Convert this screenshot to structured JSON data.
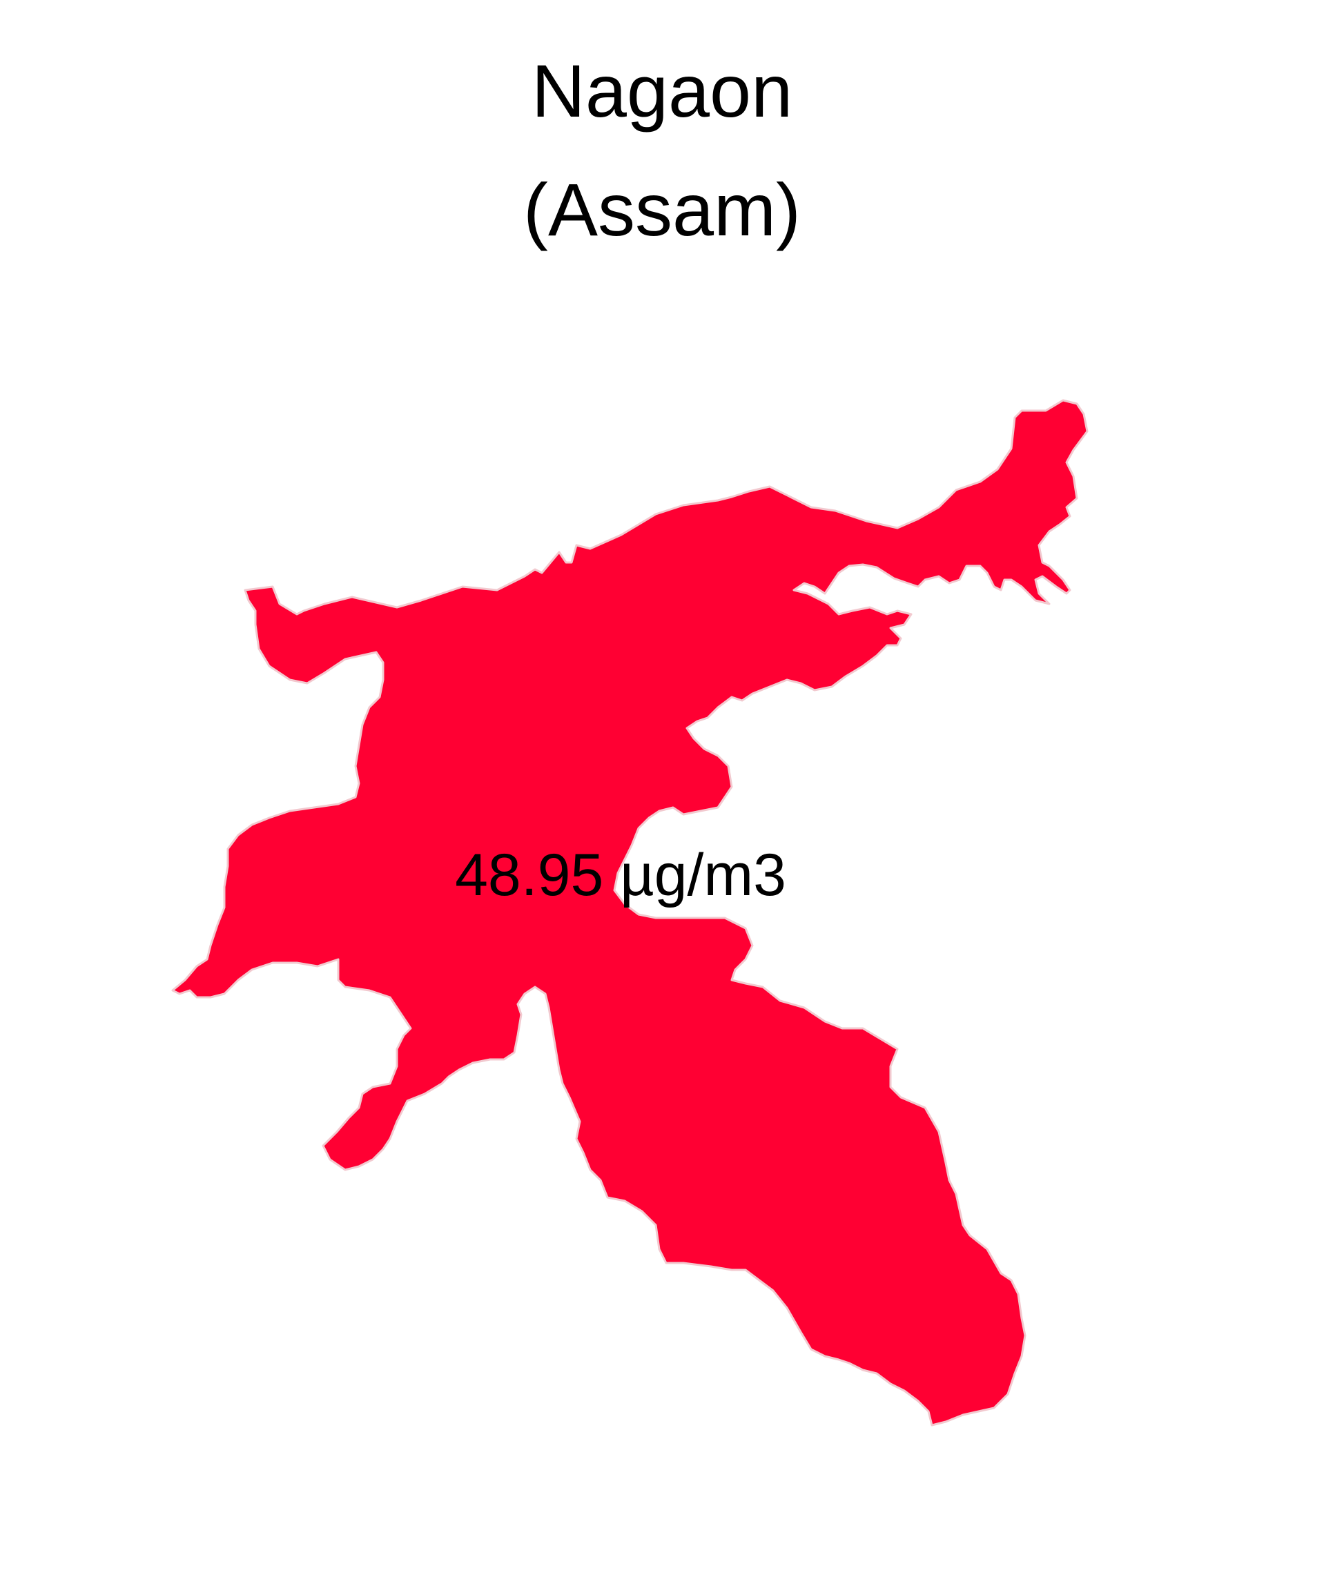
{
  "title": {
    "line1": "Nagaon",
    "line2": "(Assam)"
  },
  "region": {
    "name": "Nagaon",
    "fill_color": "#FF0033",
    "outline_color": "#F2C9CF"
  },
  "value_label": "48.95 µg/m3"
}
